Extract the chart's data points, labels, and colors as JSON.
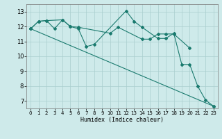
{
  "xlabel": "Humidex (Indice chaleur)",
  "bg_color": "#ceeaea",
  "grid_color": "#aacece",
  "line_color": "#1a7a6e",
  "xlim": [
    -0.5,
    23.5
  ],
  "ylim": [
    6.5,
    13.5
  ],
  "yticks": [
    7,
    8,
    9,
    10,
    11,
    12,
    13
  ],
  "xticks": [
    0,
    1,
    2,
    3,
    4,
    5,
    6,
    7,
    8,
    9,
    10,
    11,
    12,
    13,
    14,
    15,
    16,
    17,
    18,
    19,
    20,
    21,
    22,
    23
  ],
  "line1_x": [
    0,
    1,
    2,
    4,
    5,
    6,
    10,
    11,
    14,
    15,
    16,
    17,
    18,
    20
  ],
  "line1_y": [
    11.85,
    12.35,
    12.4,
    12.45,
    12.0,
    11.95,
    11.55,
    11.95,
    11.15,
    11.15,
    11.5,
    11.5,
    11.5,
    10.55
  ],
  "line2_x": [
    0,
    1,
    2,
    3,
    4,
    5,
    6,
    7,
    8,
    12,
    13,
    14,
    16,
    17,
    18,
    19,
    20,
    21,
    22,
    23
  ],
  "line2_y": [
    11.85,
    12.35,
    12.4,
    11.85,
    12.45,
    12.0,
    11.85,
    10.65,
    10.8,
    13.05,
    12.35,
    11.95,
    11.2,
    11.2,
    11.55,
    9.45,
    9.45,
    8.0,
    7.05,
    6.65
  ],
  "line3_x": [
    0,
    23
  ],
  "line3_y": [
    11.85,
    6.65
  ],
  "ms": 2.0,
  "lw": 0.8
}
